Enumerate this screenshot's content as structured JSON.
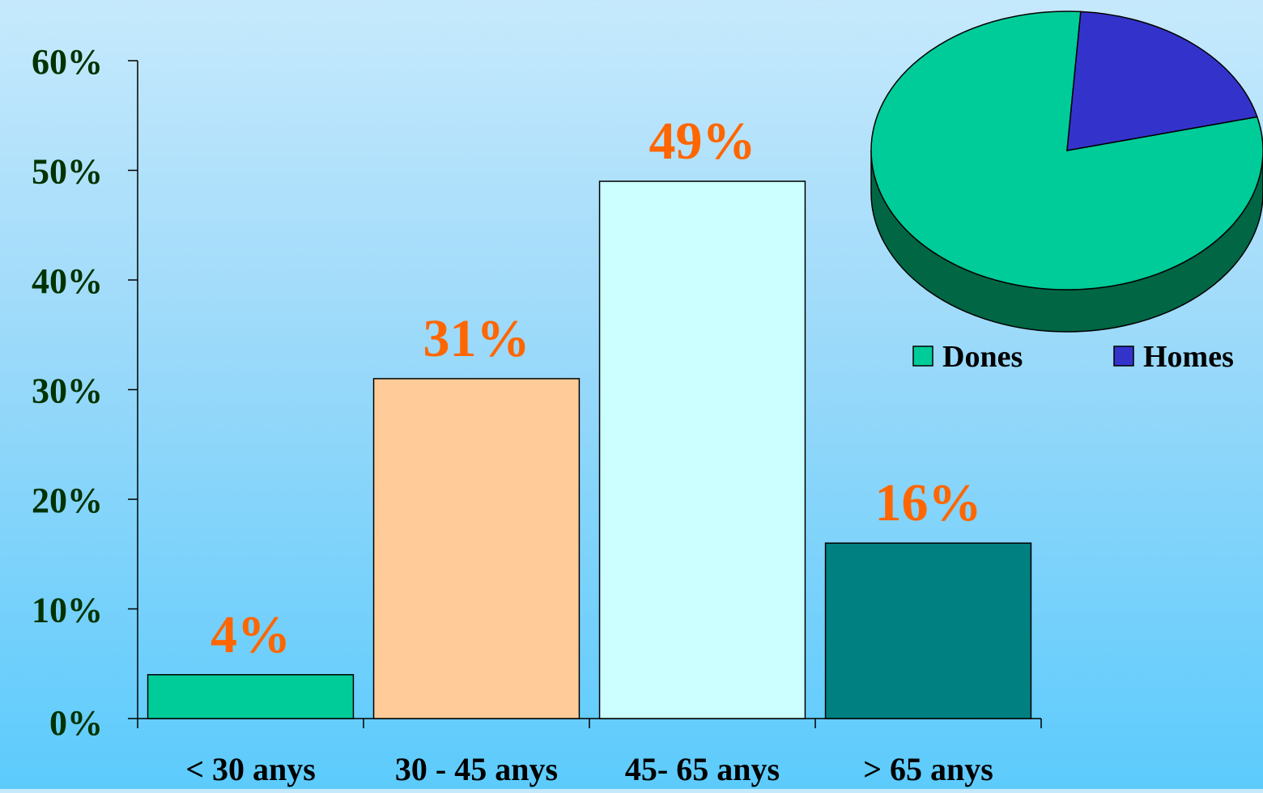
{
  "chart_data": [
    {
      "type": "bar",
      "categories": [
        "< 30 anys",
        "30 - 45 anys",
        "45- 65 anys",
        "> 65 anys"
      ],
      "values": [
        4,
        31,
        49,
        16
      ],
      "data_labels": [
        "4%",
        "31%",
        "49%",
        "16%"
      ],
      "colors": [
        "#00cc99",
        "#ffcc99",
        "#ccffff",
        "#008080"
      ],
      "ylim": [
        0,
        60
      ],
      "yticks": [
        0,
        10,
        20,
        30,
        40,
        50,
        60
      ],
      "ytick_labels": [
        "0%",
        "10%",
        "20%",
        "30%",
        "40%",
        "50%",
        "60%"
      ],
      "title": "",
      "xlabel": "",
      "ylabel": "",
      "grid": false,
      "label_color": "#ff6600",
      "tick_color": "#003300"
    },
    {
      "type": "pie",
      "style": "3d",
      "categories": [
        "Dones",
        "Homes"
      ],
      "values": [
        80,
        20
      ],
      "colors": [
        "#00cc99",
        "#3333cc"
      ],
      "side_colors": [
        "#006644",
        "#1a1a66"
      ],
      "legend_position": "bottom"
    }
  ]
}
